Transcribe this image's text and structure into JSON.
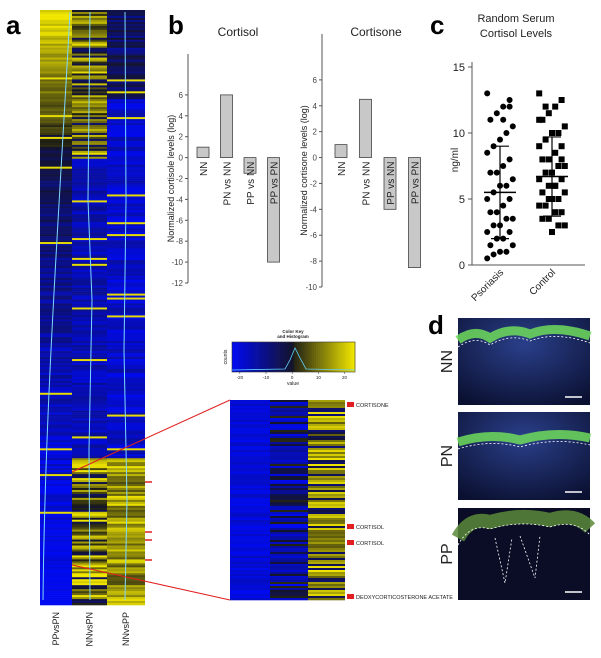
{
  "panel_labels": [
    "a",
    "b",
    "c",
    "d"
  ],
  "heatmap_a": {
    "columns": [
      "PPvsPN",
      "NNvsPN",
      "NNvsPP"
    ]
  },
  "bar_charts": [
    {
      "type": "bar",
      "title": "Cortisol",
      "y_label": "Normalized cortisole levels (log)",
      "color": "#c8c8c8",
      "categories": [
        "NN",
        "PN vs NN",
        "PP vs NN",
        "PP vs PN"
      ],
      "values": [
        1,
        6,
        -1.5,
        -10
      ],
      "ylim": [
        -12,
        8
      ],
      "yticks": [
        -12,
        -10,
        -8,
        -6,
        -4,
        -2,
        0,
        2,
        4,
        6
      ]
    },
    {
      "type": "bar",
      "title": "Cortisone",
      "y_label": "Normalized cortisone levels (log)",
      "color": "#c8c8c8",
      "categories": [
        "NN",
        "PN vs NN",
        "PP vs NN",
        "PP vs PN"
      ],
      "values": [
        1,
        4.5,
        -4,
        -8.5
      ],
      "ylim": [
        -10,
        8
      ],
      "yticks": [
        -10,
        -8,
        -6,
        -4,
        -2,
        0,
        2,
        4,
        6
      ]
    }
  ],
  "scatter": {
    "type": "scatter",
    "title": [
      "Random Serum",
      "Cortisol Levels"
    ],
    "y_label": "ng/ml",
    "ylim": [
      0,
      15
    ],
    "yticks": [
      0,
      5,
      10,
      15
    ],
    "series": [
      {
        "name": "Psoriasis",
        "marker": "circle",
        "color": "#000000",
        "mean": 5.5,
        "sd": 3.5,
        "values": [
          13,
          12.5,
          12,
          11.5,
          11,
          10.5,
          10,
          9.5,
          9,
          8.5,
          8,
          7.5,
          7,
          7,
          6.5,
          6,
          6,
          5.5,
          5,
          5,
          4.5,
          4,
          4,
          3.5,
          3.5,
          3,
          3,
          2.5,
          2.5,
          2,
          2,
          1.5,
          1.5,
          1,
          1,
          0.8,
          0.5,
          12,
          11
        ]
      },
      {
        "name": "Control",
        "marker": "square",
        "color": "#000000",
        "mean": 6.7,
        "sd": 3,
        "values": [
          13,
          12.5,
          12,
          11.5,
          11,
          10.5,
          10,
          10,
          9.5,
          9,
          9,
          8.5,
          8,
          8,
          7.5,
          7.5,
          7,
          7,
          6.5,
          6.5,
          6,
          6,
          5.5,
          5.5,
          5,
          5,
          4.5,
          4.5,
          4,
          4,
          3.5,
          3.5,
          3,
          3,
          2.5,
          12,
          11,
          8,
          6,
          5
        ]
      }
    ]
  },
  "color_key": {
    "title": [
      "Color Key",
      "and Histogram"
    ],
    "x_label": "value",
    "y_label": "counts",
    "xlim": [
      -23,
      24
    ],
    "xticks": [
      -20,
      -10,
      0,
      10,
      20
    ]
  },
  "zoom_heatmap": {
    "labels": [
      "CORTISONE",
      "CORTISOL",
      "CORTISOL",
      "DEOXYCORTICOSTERONE ACETATE"
    ]
  },
  "micrographs": {
    "labels": [
      "NN",
      "PN",
      "PP"
    ]
  }
}
